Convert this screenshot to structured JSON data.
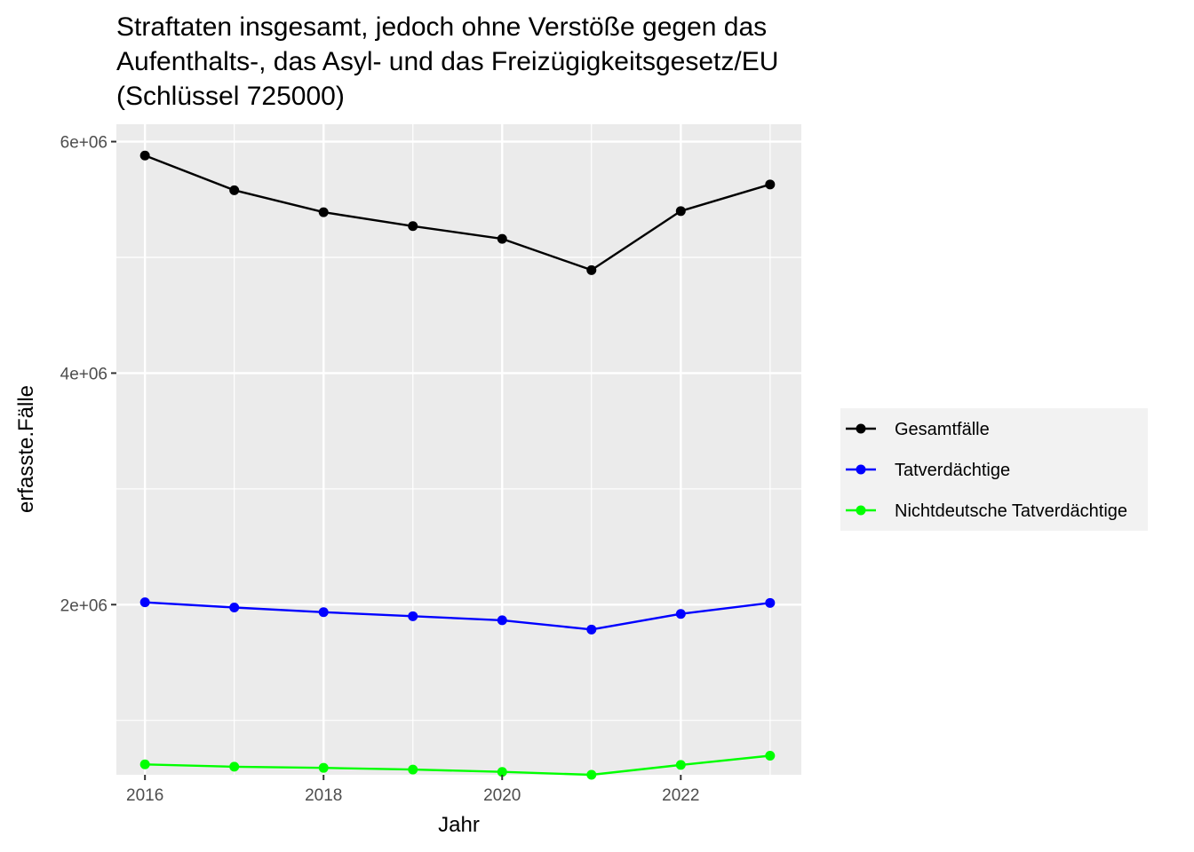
{
  "chart_data": {
    "type": "line",
    "title_lines": [
      "Straftaten insgesamt, jedoch ohne Verstöße gegen das",
      "Aufenthalts-, das Asyl- und das Freizügigkeitsgesetz/EU",
      "(Schlüssel 725000)"
    ],
    "xlabel": "Jahr",
    "ylabel": "erfasste.Fälle",
    "x": [
      2016,
      2017,
      2018,
      2019,
      2020,
      2021,
      2022,
      2023
    ],
    "xlim": [
      2015.68,
      2023.35
    ],
    "ylim": [
      530000,
      6150000
    ],
    "x_ticks": [
      2016,
      2018,
      2020,
      2022
    ],
    "x_tick_labels": [
      "2016",
      "2018",
      "2020",
      "2022"
    ],
    "y_ticks": [
      2000000,
      4000000,
      6000000
    ],
    "y_tick_labels": [
      "2e+06",
      "4e+06",
      "6e+06"
    ],
    "y_minor_ticks": [
      1000000,
      3000000,
      5000000
    ],
    "grid": true,
    "legend_position": "right",
    "series": [
      {
        "name": "Gesamtfälle",
        "color": "#000000",
        "values": [
          5880000,
          5580000,
          5390000,
          5270000,
          5160000,
          4890000,
          5400000,
          5630000
        ]
      },
      {
        "name": "Tatverdächtige",
        "color": "#0000ff",
        "values": [
          2020000,
          1975000,
          1935000,
          1900000,
          1865000,
          1785000,
          1920000,
          2015000
        ]
      },
      {
        "name": "Nichtdeutsche Tatverdächtige",
        "color": "#00ff00",
        "values": [
          620000,
          600000,
          590000,
          575000,
          555000,
          530000,
          615000,
          695000
        ]
      }
    ]
  }
}
